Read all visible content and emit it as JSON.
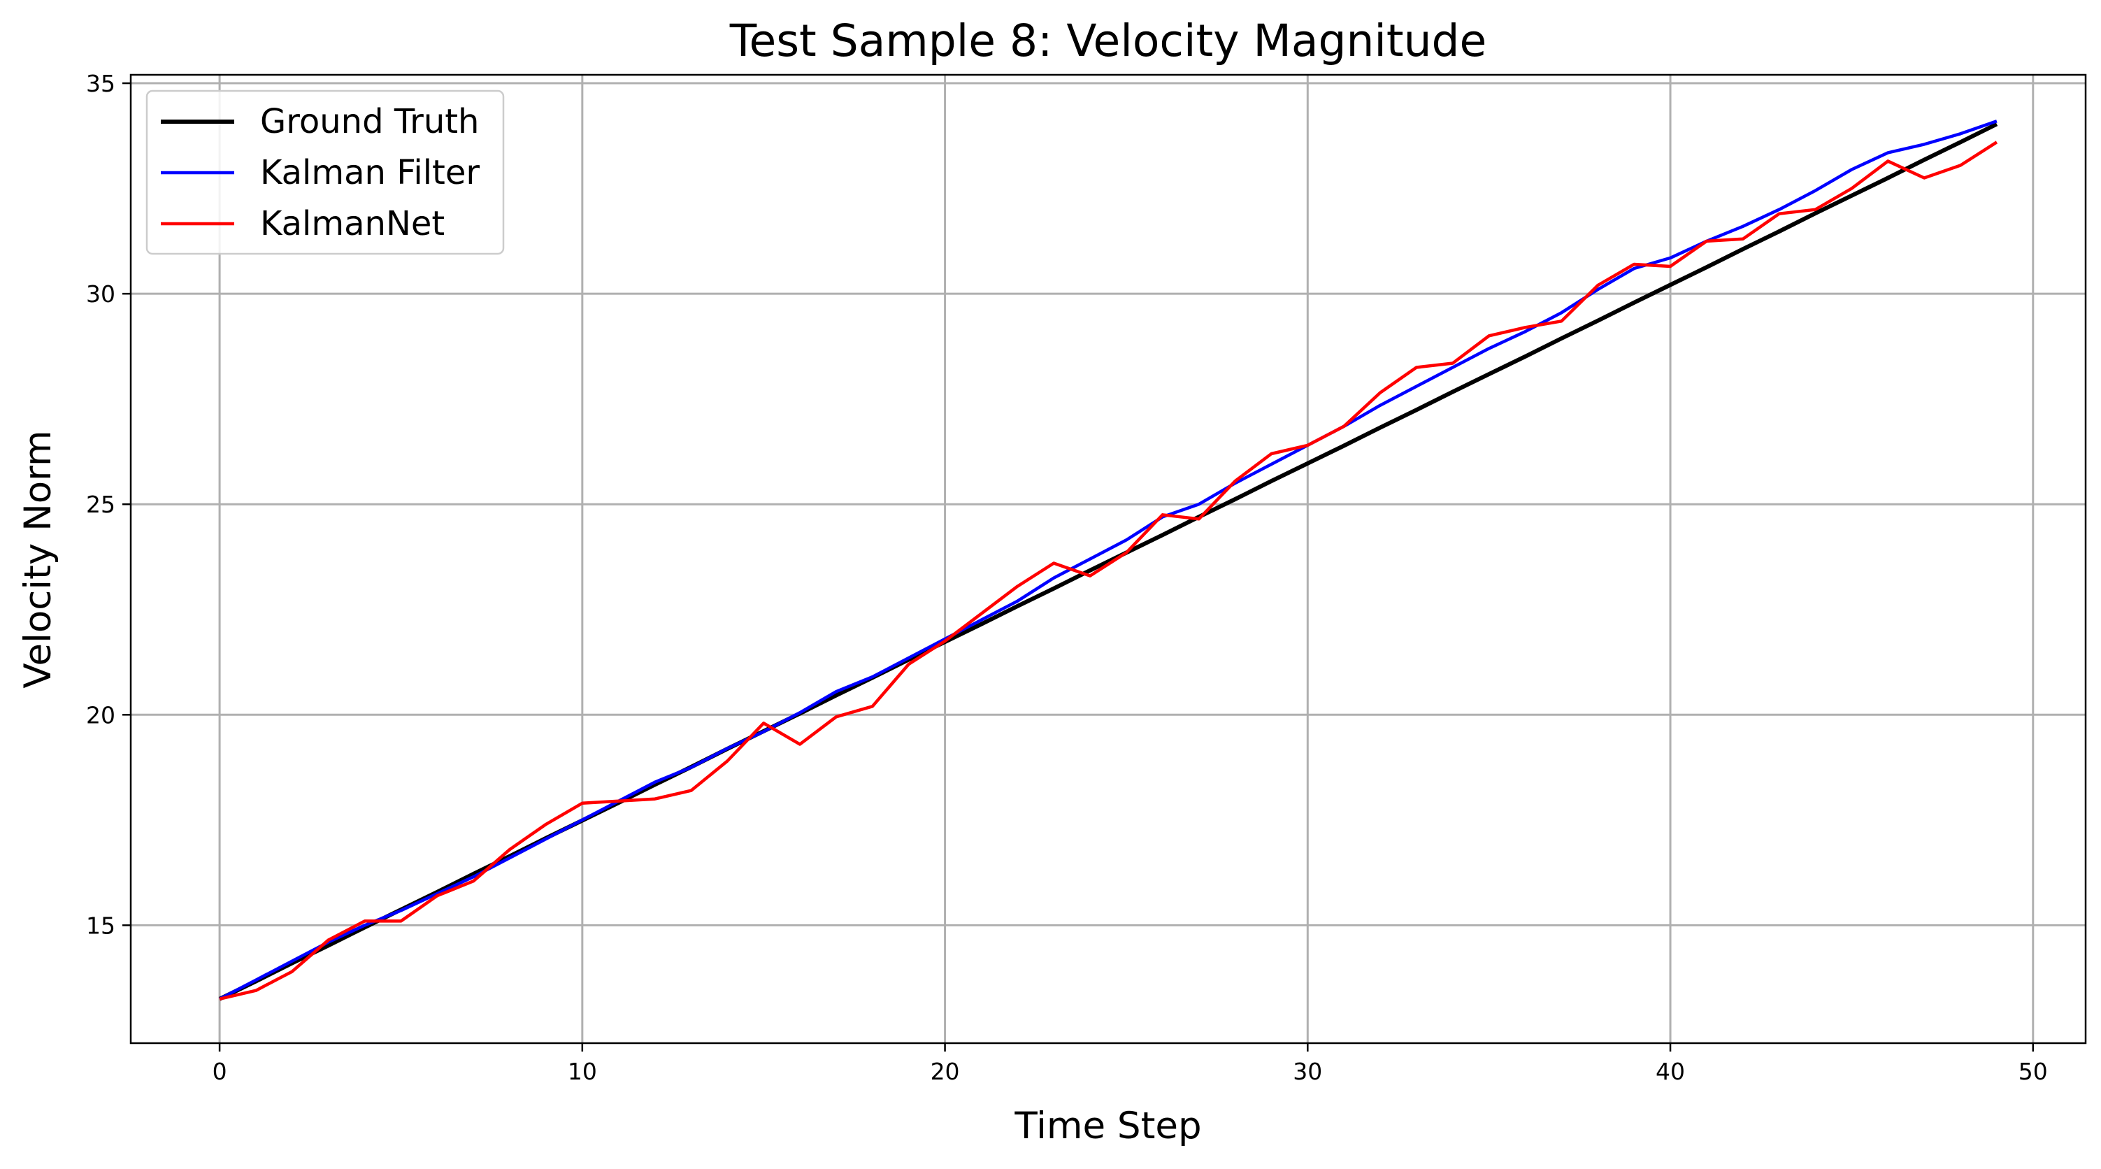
{
  "chart_data": {
    "type": "line",
    "title": "Test Sample 8: Velocity Magnitude",
    "xlabel": "Time Step",
    "ylabel": "Velocity Norm",
    "xlim": [
      -2.45,
      51.45
    ],
    "ylim": [
      12.2,
      35.2
    ],
    "xticks": [
      0,
      10,
      20,
      30,
      40,
      50
    ],
    "yticks": [
      15,
      20,
      25,
      30,
      35
    ],
    "grid": true,
    "legend_position": "upper-left",
    "x": [
      0,
      1,
      2,
      3,
      4,
      5,
      6,
      7,
      8,
      9,
      10,
      11,
      12,
      13,
      14,
      15,
      16,
      17,
      18,
      19,
      20,
      21,
      22,
      23,
      24,
      25,
      26,
      27,
      28,
      29,
      30,
      31,
      32,
      33,
      34,
      35,
      36,
      37,
      38,
      39,
      40,
      41,
      42,
      43,
      44,
      45,
      46,
      47,
      48,
      49
    ],
    "series": [
      {
        "name": "Ground Truth",
        "color": "#000000",
        "values": [
          13.25,
          13.67,
          14.1,
          14.52,
          14.95,
          15.37,
          15.79,
          16.22,
          16.64,
          17.07,
          17.49,
          17.91,
          18.34,
          18.76,
          19.19,
          19.61,
          20.03,
          20.46,
          20.88,
          21.31,
          21.73,
          22.15,
          22.58,
          23.0,
          23.43,
          23.85,
          24.27,
          24.7,
          25.12,
          25.55,
          25.97,
          26.39,
          26.82,
          27.24,
          27.67,
          28.09,
          28.51,
          28.94,
          29.36,
          29.79,
          30.21,
          30.63,
          31.06,
          31.48,
          31.91,
          32.33,
          32.75,
          33.18,
          33.6,
          34.03
        ]
      },
      {
        "name": "Kalman Filter",
        "color": "#0000ff",
        "values": [
          13.25,
          13.7,
          14.15,
          14.6,
          15.0,
          15.35,
          15.75,
          16.15,
          16.6,
          17.05,
          17.5,
          17.95,
          18.4,
          18.75,
          19.2,
          19.6,
          20.05,
          20.55,
          20.9,
          21.35,
          21.8,
          22.25,
          22.7,
          23.25,
          23.7,
          24.15,
          24.7,
          25.0,
          25.5,
          25.95,
          26.4,
          26.85,
          27.35,
          27.8,
          28.25,
          28.7,
          29.1,
          29.55,
          30.1,
          30.6,
          30.85,
          31.25,
          31.6,
          32.0,
          32.45,
          32.95,
          33.35,
          33.55,
          33.8,
          34.1
        ]
      },
      {
        "name": "KalmanNet",
        "color": "#ff0000",
        "values": [
          13.25,
          13.45,
          13.9,
          14.65,
          15.1,
          15.1,
          15.7,
          16.05,
          16.8,
          17.4,
          17.9,
          17.95,
          18.0,
          18.2,
          18.9,
          19.8,
          19.3,
          19.95,
          20.2,
          21.2,
          21.75,
          22.4,
          23.05,
          23.6,
          23.3,
          23.85,
          24.75,
          24.65,
          25.55,
          26.2,
          26.4,
          26.85,
          27.65,
          28.25,
          28.35,
          29.0,
          29.2,
          29.35,
          30.2,
          30.7,
          30.65,
          31.25,
          31.3,
          31.9,
          32.0,
          32.5,
          33.15,
          32.75,
          33.05,
          33.6
        ]
      }
    ]
  }
}
